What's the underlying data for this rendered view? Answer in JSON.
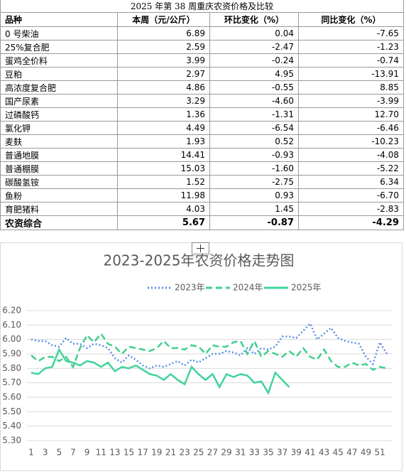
{
  "table": {
    "title": "2025 年第 38 周重庆农资价格及比较",
    "headers": [
      "品种",
      "本周（元/公斤）",
      "环比变化（%）",
      "同比变化（%）"
    ],
    "rows": [
      [
        "0 号柴油",
        "6.89",
        "0.04",
        "-7.65"
      ],
      [
        "25%复合肥",
        "2.59",
        "-2.47",
        "-1.23"
      ],
      [
        "蛋鸡全价料",
        "3.99",
        "-0.24",
        "-0.74"
      ],
      [
        "豆粕",
        "2.97",
        "4.95",
        "-13.91"
      ],
      [
        "高浓度复合肥",
        "4.86",
        "-0.55",
        "8.85"
      ],
      [
        "国产尿素",
        "3.29",
        "-4.60",
        "-3.99"
      ],
      [
        "过磷酸钙",
        "1.36",
        "-1.31",
        "12.70"
      ],
      [
        "氯化钾",
        "4.49",
        "-6.54",
        "-6.46"
      ],
      [
        "麦麸",
        "1.93",
        "0.52",
        "-10.23"
      ],
      [
        "普通地膜",
        "14.41",
        "-0.93",
        "-4.08"
      ],
      [
        "普通棚膜",
        "15.03",
        "-1.60",
        "-5.22"
      ],
      [
        "碳酸氢铵",
        "1.52",
        "-2.75",
        "6.34"
      ],
      [
        "鱼粉",
        "11.98",
        "0.93",
        "-6.70"
      ],
      [
        "育肥猪料",
        "4.03",
        "1.45",
        "-2.83"
      ],
      [
        "农资综合",
        "5.67",
        "-0.87",
        "-4.29"
      ]
    ]
  },
  "chart_data": {
    "type": "line",
    "title": "2023-2025年农资价格走势图",
    "x": [
      1,
      2,
      3,
      4,
      5,
      6,
      7,
      8,
      9,
      10,
      11,
      12,
      13,
      14,
      15,
      16,
      17,
      18,
      19,
      20,
      21,
      22,
      23,
      24,
      25,
      26,
      27,
      28,
      29,
      30,
      31,
      32,
      33,
      34,
      35,
      36,
      37,
      38,
      39,
      40,
      41,
      42,
      43,
      44,
      45,
      46,
      47,
      48,
      49,
      50,
      51,
      52
    ],
    "xlim": [
      1,
      52
    ],
    "xticks": [
      1,
      3,
      5,
      7,
      9,
      11,
      13,
      15,
      17,
      19,
      21,
      23,
      25,
      27,
      29,
      31,
      33,
      35,
      37,
      39,
      41,
      43,
      45,
      47,
      49,
      51
    ],
    "ylim": [
      5.3,
      6.2
    ],
    "yticks": [
      {
        "value": 5.3,
        "label": "5.30"
      },
      {
        "value": 5.4,
        "label": "5.40"
      },
      {
        "value": 5.5,
        "label": "5.50"
      },
      {
        "value": 5.6,
        "label": "5.60"
      },
      {
        "value": 5.7,
        "label": "5.70"
      },
      {
        "value": 5.8,
        "label": "5.80"
      },
      {
        "value": 5.9,
        "label": "5.90"
      },
      {
        "value": 6.0,
        "label": "6.00"
      },
      {
        "value": 6.1,
        "label": "6.10"
      },
      {
        "value": 6.2,
        "label": "6.20"
      }
    ],
    "grid": true,
    "legend": "top",
    "series": [
      {
        "name": "2023年",
        "color": "#5b8ee6",
        "style": "dotted",
        "values": [
          6.0,
          5.99,
          5.99,
          5.96,
          5.95,
          6.01,
          5.97,
          5.97,
          5.94,
          5.97,
          5.96,
          5.94,
          5.87,
          5.84,
          5.89,
          5.86,
          5.82,
          5.8,
          5.82,
          5.81,
          5.83,
          5.85,
          5.82,
          5.86,
          5.84,
          5.87,
          5.9,
          5.9,
          5.92,
          5.91,
          5.89,
          5.94,
          5.9,
          5.94,
          5.93,
          5.95,
          6.02,
          6.02,
          6.01,
          6.06,
          6.11,
          6.0,
          6.04,
          6.08,
          6.01,
          5.99,
          5.98,
          5.97,
          5.88,
          5.83,
          5.98,
          5.9
        ]
      },
      {
        "name": "2024年",
        "color": "#3fcf8e",
        "style": "dashed",
        "values": [
          5.89,
          5.85,
          5.88,
          5.88,
          5.85,
          5.88,
          5.81,
          5.94,
          6.03,
          5.98,
          6.04,
          5.97,
          5.95,
          5.9,
          5.95,
          5.94,
          5.93,
          5.92,
          5.94,
          5.99,
          5.94,
          5.94,
          5.93,
          5.96,
          5.95,
          5.9,
          5.96,
          5.95,
          5.95,
          5.98,
          5.99,
          5.9,
          5.99,
          5.88,
          5.92,
          5.9,
          5.88,
          5.92,
          5.88,
          5.94,
          5.88,
          5.86,
          5.93,
          5.85,
          5.81,
          5.81,
          5.84,
          5.82,
          5.83,
          5.79,
          5.81,
          5.8
        ]
      },
      {
        "name": "2025年",
        "color": "#40d39a",
        "style": "solid",
        "values": [
          5.77,
          5.76,
          5.8,
          5.81,
          5.93,
          5.85,
          5.84,
          5.82,
          5.85,
          5.84,
          5.81,
          5.84,
          5.78,
          5.81,
          5.8,
          5.82,
          5.79,
          5.76,
          5.75,
          5.72,
          5.76,
          5.72,
          5.69,
          5.81,
          5.76,
          5.72,
          5.76,
          5.67,
          5.76,
          5.74,
          5.76,
          5.75,
          5.7,
          5.71,
          5.63,
          5.77,
          5.72,
          5.67,
          null,
          null,
          null,
          null,
          null,
          null,
          null,
          null,
          null,
          null,
          null,
          null,
          null,
          null
        ]
      }
    ]
  }
}
